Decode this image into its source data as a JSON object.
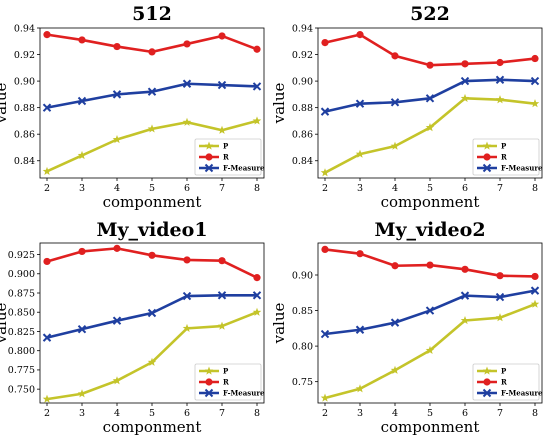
{
  "chart_data": [
    {
      "type": "line",
      "title": "512",
      "xlabel": "componment",
      "ylabel": "value",
      "x": [
        2,
        3,
        4,
        5,
        6,
        7,
        8
      ],
      "xlim": [
        1.8,
        8.2
      ],
      "ylim": [
        0.827,
        0.94
      ],
      "yticks": [
        "0.84",
        "0.86",
        "0.88",
        "0.90",
        "0.92",
        "0.94"
      ],
      "legend_position": "bottom-right",
      "series": [
        {
          "name": "P",
          "color": "#c4c42a",
          "marker": "star",
          "values": [
            0.832,
            0.844,
            0.856,
            0.864,
            0.869,
            0.863,
            0.87
          ]
        },
        {
          "name": "R",
          "color": "#e02020",
          "marker": "circle",
          "values": [
            0.935,
            0.931,
            0.926,
            0.922,
            0.928,
            0.934,
            0.924
          ]
        },
        {
          "name": "F-Measure",
          "color": "#1f3fa0",
          "marker": "x",
          "values": [
            0.88,
            0.885,
            0.89,
            0.892,
            0.898,
            0.897,
            0.896
          ]
        }
      ]
    },
    {
      "type": "line",
      "title": "522",
      "xlabel": "componment",
      "ylabel": "value",
      "x": [
        2,
        3,
        4,
        5,
        6,
        7,
        8
      ],
      "xlim": [
        1.8,
        8.2
      ],
      "ylim": [
        0.827,
        0.94
      ],
      "yticks": [
        "0.84",
        "0.86",
        "0.88",
        "0.90",
        "0.92",
        "0.94"
      ],
      "legend_position": "bottom-right",
      "series": [
        {
          "name": "P",
          "color": "#c4c42a",
          "marker": "star",
          "values": [
            0.831,
            0.845,
            0.851,
            0.865,
            0.887,
            0.886,
            0.883
          ]
        },
        {
          "name": "R",
          "color": "#e02020",
          "marker": "circle",
          "values": [
            0.929,
            0.935,
            0.919,
            0.912,
            0.913,
            0.914,
            0.917
          ]
        },
        {
          "name": "F-Measure",
          "color": "#1f3fa0",
          "marker": "x",
          "values": [
            0.877,
            0.883,
            0.884,
            0.887,
            0.9,
            0.901,
            0.9
          ]
        }
      ]
    },
    {
      "type": "line",
      "title": "My_video1",
      "xlabel": "componment",
      "ylabel": "value",
      "x": [
        2,
        3,
        4,
        5,
        6,
        7,
        8
      ],
      "xlim": [
        1.8,
        8.2
      ],
      "ylim": [
        0.732,
        0.94
      ],
      "yticks": [
        "0.750",
        "0.775",
        "0.800",
        "0.825",
        "0.850",
        "0.875",
        "0.900",
        "0.925"
      ],
      "legend_position": "bottom-right",
      "series": [
        {
          "name": "P",
          "color": "#c4c42a",
          "marker": "star",
          "values": [
            0.737,
            0.744,
            0.761,
            0.785,
            0.829,
            0.832,
            0.85
          ]
        },
        {
          "name": "R",
          "color": "#e02020",
          "marker": "circle",
          "values": [
            0.916,
            0.929,
            0.933,
            0.924,
            0.918,
            0.917,
            0.895
          ]
        },
        {
          "name": "F-Measure",
          "color": "#1f3fa0",
          "marker": "x",
          "values": [
            0.817,
            0.828,
            0.839,
            0.849,
            0.871,
            0.872,
            0.872
          ]
        }
      ]
    },
    {
      "type": "line",
      "title": "My_video2",
      "xlabel": "componment",
      "ylabel": "value",
      "x": [
        2,
        3,
        4,
        5,
        6,
        7,
        8
      ],
      "xlim": [
        1.8,
        8.2
      ],
      "ylim": [
        0.72,
        0.945
      ],
      "yticks": [
        "0.75",
        "0.80",
        "0.85",
        "0.90"
      ],
      "legend_position": "bottom-right",
      "series": [
        {
          "name": "P",
          "color": "#c4c42a",
          "marker": "star",
          "values": [
            0.727,
            0.74,
            0.766,
            0.794,
            0.836,
            0.84,
            0.859
          ]
        },
        {
          "name": "R",
          "color": "#e02020",
          "marker": "circle",
          "values": [
            0.936,
            0.93,
            0.913,
            0.914,
            0.908,
            0.899,
            0.898
          ]
        },
        {
          "name": "F-Measure",
          "color": "#1f3fa0",
          "marker": "x",
          "values": [
            0.817,
            0.823,
            0.833,
            0.85,
            0.871,
            0.869,
            0.878
          ]
        }
      ]
    }
  ]
}
